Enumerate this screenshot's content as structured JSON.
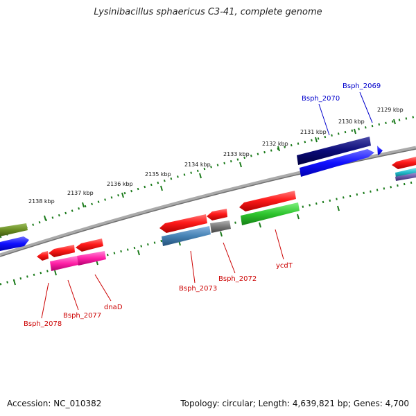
{
  "title": "Lysinibacillus sphaericus C3-41, complete genome",
  "footer": {
    "accession": "Accession: NC_010382",
    "summary": "Topology: circular; Length: 4,639,821 bp; Genes: 4,700"
  },
  "ticks": [
    "2129 kbp",
    "2130 kbp",
    "2131 kbp",
    "2132 kbp",
    "2133 kbp",
    "2134 kbp",
    "2135 kbp",
    "2136 kbp",
    "2137 kbp",
    "2138 kbp"
  ],
  "gene_labels": {
    "bsph_2069": "Bsph_2069",
    "bsph_2070": "Bsph_2070",
    "bsph_2078": "Bsph_2078",
    "bsph_2077": "Bsph_2077",
    "dnaD": "dnaD",
    "bsph_2073": "Bsph_2073",
    "bsph_2072": "Bsph_2072",
    "ycdT": "ycdT"
  },
  "colors": {
    "forward_label": "#0000cc",
    "reverse_label": "#cc0000",
    "backbone": "#888888",
    "tick": "#1a7a1a"
  }
}
